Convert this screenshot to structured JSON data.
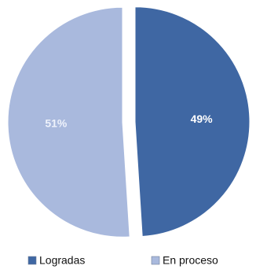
{
  "chart_data": {
    "type": "pie",
    "series": [
      {
        "name": "Logradas",
        "value": 49,
        "label": "49%",
        "color": "#3f67a3",
        "label_color": "#ffffff"
      },
      {
        "name": "En proceso",
        "value": 51,
        "label": "51%",
        "color": "#a9b9dd",
        "label_color": "#eef2fb"
      }
    ],
    "exploded": true,
    "legend_position": "bottom",
    "title": ""
  }
}
